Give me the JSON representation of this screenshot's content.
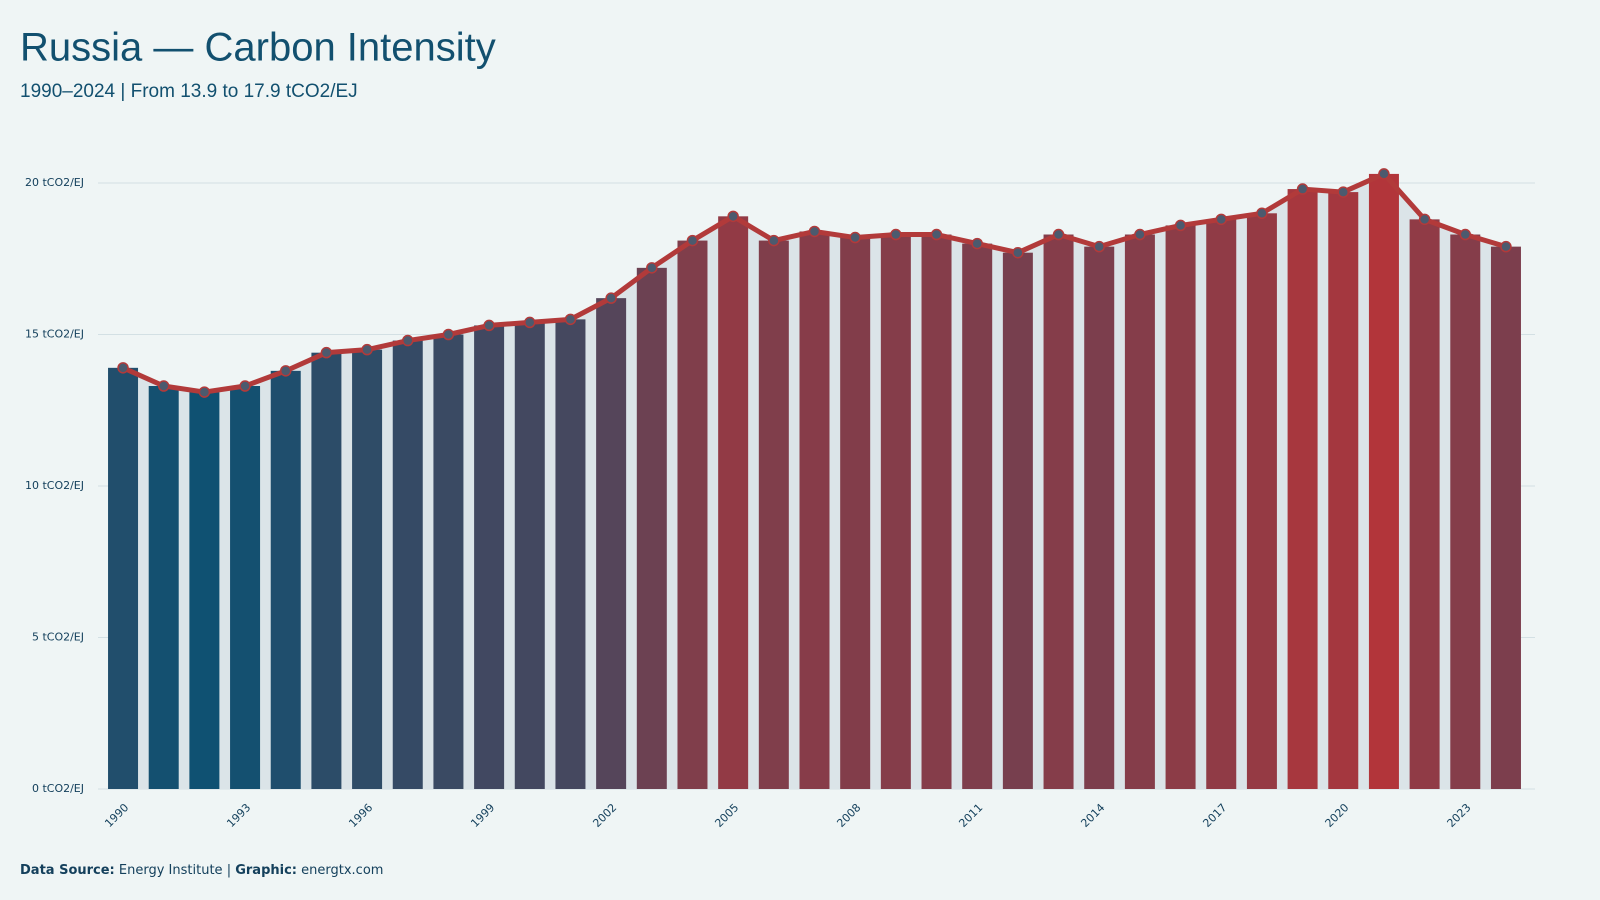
{
  "chart_data": {
    "type": "bar",
    "title": "Russia — Carbon Intensity",
    "subtitle": "1990–2024 | From 13.9 to 17.9 tCO2/EJ",
    "categories": [
      "1990",
      null,
      null,
      "1993",
      null,
      null,
      "1996",
      null,
      null,
      "1999",
      null,
      null,
      "2002",
      null,
      null,
      "2005",
      null,
      null,
      "2008",
      null,
      null,
      "2011",
      null,
      null,
      "2014",
      null,
      null,
      "2017",
      null,
      null,
      "2020",
      null,
      null,
      "2023",
      null
    ],
    "values": [
      13.9,
      13.3,
      13.1,
      13.3,
      13.8,
      14.4,
      14.5,
      14.8,
      15.0,
      15.3,
      15.4,
      15.5,
      16.2,
      17.2,
      18.1,
      18.9,
      18.1,
      18.4,
      18.2,
      18.3,
      18.3,
      18.0,
      17.7,
      18.3,
      17.9,
      18.3,
      18.6,
      18.8,
      19.0,
      19.8,
      19.7,
      20.3,
      18.8,
      18.3,
      17.9
    ],
    "color_scale": [
      "#0f5172",
      "#b2353a"
    ],
    "line_color": "#b23a3a",
    "marker_color": "#4c5a6e",
    "area_color": "#dbe4e8",
    "ylim": [
      0,
      21
    ],
    "yticks": [
      {
        "value": 0,
        "label": "0 tCO2/EJ"
      },
      {
        "value": 5,
        "label": "5 tCO2/EJ"
      },
      {
        "value": 10,
        "label": "10 tCO2/EJ"
      },
      {
        "value": 15,
        "label": "15 tCO2/EJ"
      },
      {
        "value": 20,
        "label": "20 tCO2/EJ"
      }
    ],
    "grid": true,
    "footer": {
      "source_label": "Data Source:",
      "source": "Energy Institute",
      "separator": "|",
      "graphic_label": "Graphic:",
      "graphic": "energtx.com"
    }
  }
}
